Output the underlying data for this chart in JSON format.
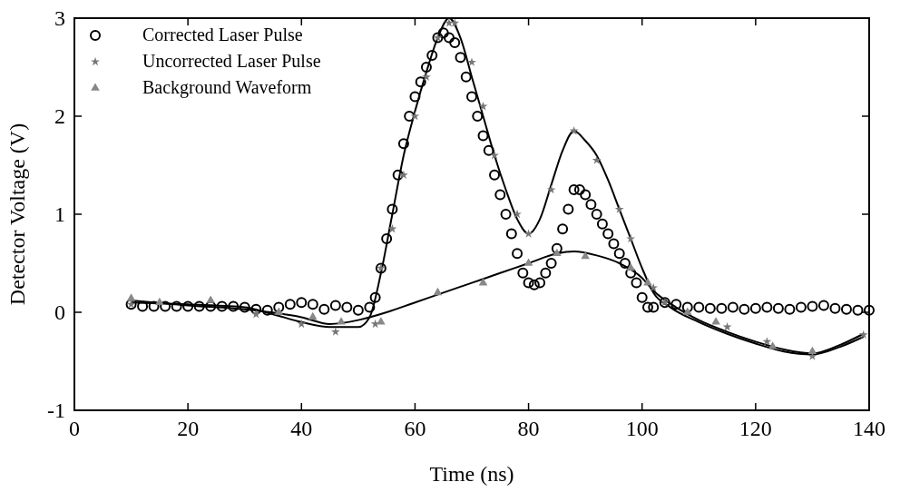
{
  "chart_data": {
    "type": "scatter",
    "xlabel": "Time (ns)",
    "ylabel": "Detector Voltage (V)",
    "xlim": [
      0,
      140
    ],
    "ylim": [
      -1,
      3
    ],
    "xticks": [
      0,
      20,
      40,
      60,
      80,
      100,
      120,
      140
    ],
    "yticks": [
      -1,
      0,
      1,
      2,
      3
    ],
    "grid": false,
    "legend": "top left",
    "series": [
      {
        "name": "Corrected Laser Pulse",
        "marker": "circle",
        "color": "#000000",
        "x": [
          10,
          12,
          14,
          16,
          18,
          20,
          22,
          24,
          26,
          28,
          30,
          32,
          34,
          36,
          38,
          40,
          42,
          44,
          46,
          48,
          50,
          52,
          53,
          54,
          55,
          56,
          57,
          58,
          59,
          60,
          61,
          62,
          63,
          64,
          65,
          66,
          67,
          68,
          69,
          70,
          71,
          72,
          73,
          74,
          75,
          76,
          77,
          78,
          79,
          80,
          81,
          82,
          83,
          84,
          85,
          86,
          87,
          88,
          89,
          90,
          91,
          92,
          93,
          94,
          95,
          96,
          97,
          98,
          99,
          100,
          101,
          102,
          104,
          106,
          108,
          110,
          112,
          114,
          116,
          118,
          120,
          122,
          124,
          126,
          128,
          130,
          132,
          134,
          136,
          138,
          140
        ],
        "values": [
          0.08,
          0.06,
          0.06,
          0.06,
          0.06,
          0.06,
          0.06,
          0.06,
          0.06,
          0.06,
          0.05,
          0.03,
          0.02,
          0.05,
          0.08,
          0.1,
          0.08,
          0.03,
          0.07,
          0.05,
          0.02,
          0.05,
          0.15,
          0.45,
          0.75,
          1.05,
          1.4,
          1.72,
          2.0,
          2.2,
          2.35,
          2.5,
          2.62,
          2.8,
          2.85,
          2.8,
          2.75,
          2.6,
          2.4,
          2.2,
          2.0,
          1.8,
          1.65,
          1.4,
          1.2,
          1.0,
          0.8,
          0.6,
          0.4,
          0.3,
          0.28,
          0.3,
          0.4,
          0.5,
          0.65,
          0.85,
          1.05,
          1.25,
          1.25,
          1.2,
          1.1,
          1.0,
          0.9,
          0.8,
          0.7,
          0.6,
          0.5,
          0.4,
          0.3,
          0.15,
          0.05,
          0.05,
          0.1,
          0.08,
          0.05,
          0.05,
          0.04,
          0.04,
          0.05,
          0.03,
          0.04,
          0.05,
          0.04,
          0.03,
          0.05,
          0.06,
          0.07,
          0.04,
          0.03,
          0.02,
          0.02
        ]
      },
      {
        "name": "Uncorrected Laser Pulse",
        "marker": "star",
        "color": "#777777",
        "x": [
          10,
          32,
          40,
          46,
          53,
          54,
          56,
          58,
          60,
          62,
          64,
          66,
          67,
          70,
          72,
          74,
          78,
          80,
          84,
          88,
          92,
          96,
          98,
          102,
          104,
          115,
          122,
          130,
          139
        ],
        "values": [
          0.08,
          -0.02,
          -0.12,
          -0.2,
          -0.12,
          0.45,
          0.85,
          1.4,
          2.0,
          2.4,
          2.8,
          2.95,
          2.95,
          2.55,
          2.1,
          1.6,
          1.0,
          0.8,
          1.25,
          1.85,
          1.55,
          1.05,
          0.75,
          0.25,
          0.1,
          -0.15,
          -0.3,
          -0.45,
          -0.23
        ]
      },
      {
        "name": "Background Waveform",
        "marker": "triangle",
        "color": "#888888",
        "x": [
          10,
          15,
          24,
          36,
          42,
          47,
          54,
          64,
          72,
          80,
          85,
          90,
          98,
          101,
          108,
          113,
          123,
          130
        ],
        "values": [
          0.14,
          0.1,
          0.12,
          0.0,
          -0.05,
          -0.1,
          -0.1,
          0.2,
          0.3,
          0.5,
          0.6,
          0.57,
          0.45,
          0.3,
          0.0,
          -0.1,
          -0.35,
          -0.4
        ]
      },
      {
        "type": "line",
        "marker": "none",
        "color": "#000000",
        "x": [
          10,
          20,
          30,
          35,
          40,
          45,
          50,
          52,
          54,
          56,
          58,
          60,
          62,
          64,
          66,
          68,
          70,
          72,
          74,
          76,
          78,
          80,
          82,
          84,
          86,
          88,
          90,
          92,
          94,
          96,
          98,
          100,
          102,
          105,
          110,
          115,
          120,
          125,
          130,
          135,
          139
        ],
        "values": [
          0.1,
          0.08,
          0.05,
          -0.02,
          -0.1,
          -0.15,
          -0.15,
          -0.05,
          0.4,
          1.0,
          1.6,
          2.05,
          2.45,
          2.8,
          3.0,
          2.8,
          2.4,
          2.0,
          1.6,
          1.25,
          0.95,
          0.8,
          0.95,
          1.3,
          1.65,
          1.85,
          1.75,
          1.6,
          1.35,
          1.05,
          0.75,
          0.45,
          0.2,
          0.05,
          -0.1,
          -0.22,
          -0.32,
          -0.4,
          -0.43,
          -0.35,
          -0.25
        ]
      },
      {
        "type": "line",
        "marker": "none",
        "color": "#000000",
        "x": [
          10,
          20,
          30,
          40,
          45,
          50,
          55,
          60,
          65,
          70,
          75,
          80,
          85,
          88,
          92,
          96,
          100,
          102,
          106,
          110,
          115,
          120,
          125,
          130,
          135,
          139
        ],
        "values": [
          0.12,
          0.07,
          0.03,
          -0.05,
          -0.12,
          -0.08,
          0.0,
          0.1,
          0.2,
          0.3,
          0.4,
          0.5,
          0.6,
          0.62,
          0.58,
          0.5,
          0.35,
          0.22,
          0.05,
          -0.08,
          -0.2,
          -0.3,
          -0.38,
          -0.42,
          -0.33,
          -0.22
        ]
      }
    ]
  }
}
